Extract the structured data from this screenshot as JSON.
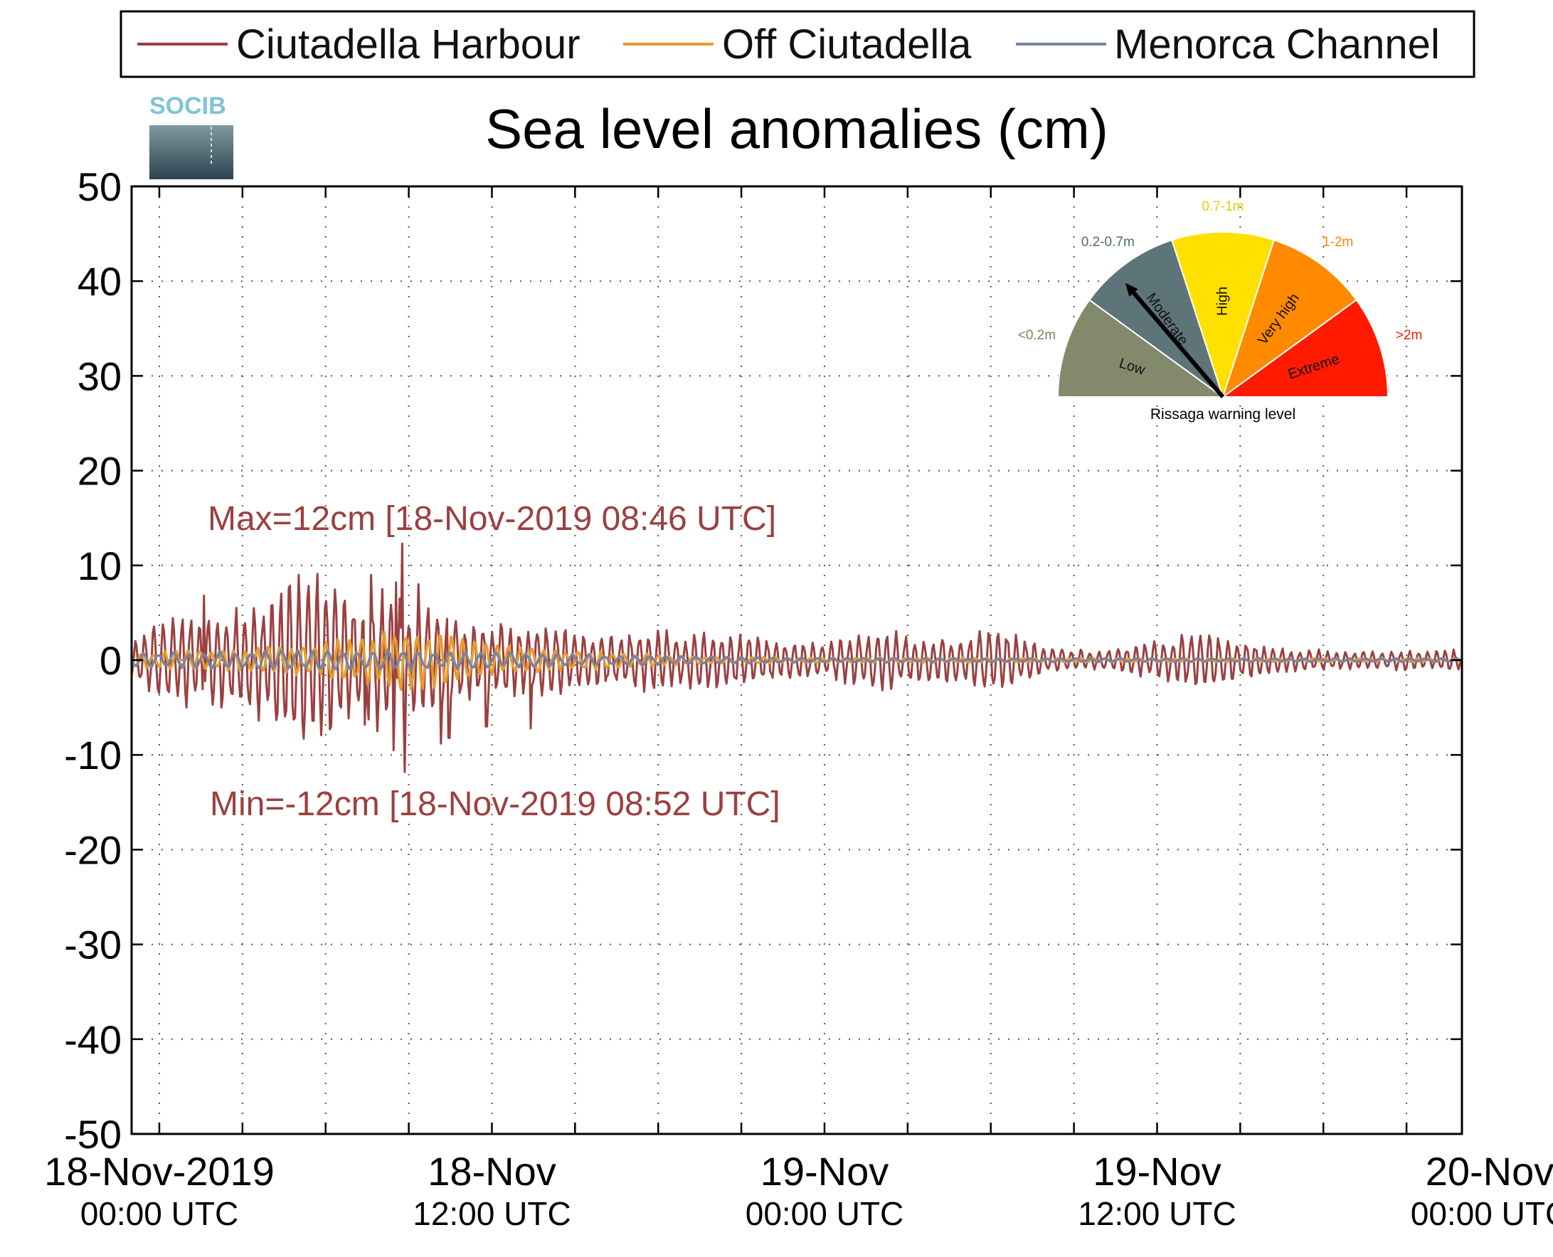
{
  "chart_data": {
    "type": "line",
    "title": "Sea level anomalies (cm)",
    "ylim": [
      -50,
      50
    ],
    "yticks": [
      50,
      40,
      30,
      20,
      10,
      0,
      -10,
      -20,
      -30,
      -40,
      -50
    ],
    "xlim_hours": [
      -1,
      47
    ],
    "xticks": [
      {
        "hours": 0,
        "date": "18-Nov-2019",
        "time": "00:00 UTC"
      },
      {
        "hours": 12,
        "date": "18-Nov",
        "time": "12:00 UTC"
      },
      {
        "hours": 24,
        "date": "19-Nov",
        "time": "00:00 UTC"
      },
      {
        "hours": 36,
        "date": "19-Nov",
        "time": "12:00 UTC"
      },
      {
        "hours": 48,
        "date": "20-Nov",
        "time": "00:00 UTC"
      }
    ],
    "grid": true,
    "legend_position": "top",
    "series": [
      {
        "name": "Ciutadella Harbour",
        "color": "#9b4040",
        "envelope": [
          [
            -1,
            2
          ],
          [
            0,
            4.5
          ],
          [
            1,
            5.5
          ],
          [
            2,
            5.5
          ],
          [
            3,
            6
          ],
          [
            4,
            7
          ],
          [
            5,
            11
          ],
          [
            6,
            9
          ],
          [
            7,
            7
          ],
          [
            8,
            8
          ],
          [
            9,
            6
          ],
          [
            10,
            6
          ],
          [
            11,
            4.5
          ],
          [
            12,
            4
          ],
          [
            14,
            4
          ],
          [
            16,
            3
          ],
          [
            18,
            3.5
          ],
          [
            19,
            3
          ],
          [
            20,
            3.2
          ],
          [
            22,
            2.5
          ],
          [
            24,
            1.8
          ],
          [
            25,
            2.8
          ],
          [
            26,
            3.5
          ],
          [
            27,
            3
          ],
          [
            28,
            2.4
          ],
          [
            29,
            2.5
          ],
          [
            30,
            3.5
          ],
          [
            31,
            2.8
          ],
          [
            32,
            1.5
          ],
          [
            33,
            1.2
          ],
          [
            34,
            1
          ],
          [
            35,
            1.5
          ],
          [
            36,
            2.2
          ],
          [
            37,
            2.8
          ],
          [
            38,
            3.2
          ],
          [
            39,
            2.3
          ],
          [
            40,
            1.6
          ],
          [
            41,
            1.2
          ],
          [
            42,
            1.2
          ],
          [
            43,
            1
          ],
          [
            45,
            1.1
          ],
          [
            47,
            1.2
          ]
        ],
        "extremes": [
          {
            "t": 8.77,
            "v": 12.3
          },
          {
            "t": 8.87,
            "v": -11.8
          },
          {
            "t": 8.55,
            "v": 8.2
          },
          {
            "t": 8.45,
            "v": -9.5
          },
          {
            "t": 7.65,
            "v": 9
          },
          {
            "t": 7.4,
            "v": -6.8
          },
          {
            "t": 9.35,
            "v": 8
          },
          {
            "t": 10.15,
            "v": -8.8
          },
          {
            "t": 10.45,
            "v": -8.2
          },
          {
            "t": 11.8,
            "v": -7
          },
          {
            "t": 13.4,
            "v": -7.2
          },
          {
            "t": 1.6,
            "v": 6.8
          },
          {
            "t": 5.55,
            "v": -6.4
          }
        ]
      },
      {
        "name": "Off Ciutadella",
        "color": "#e59c2e",
        "envelope": [
          [
            -1,
            0.8
          ],
          [
            2,
            1.2
          ],
          [
            5,
            1.8
          ],
          [
            7,
            2.4
          ],
          [
            8,
            3.2
          ],
          [
            9,
            4
          ],
          [
            10,
            3.4
          ],
          [
            11,
            2.6
          ],
          [
            12,
            1.8
          ],
          [
            14,
            1.3
          ],
          [
            16,
            1
          ],
          [
            18,
            0.6
          ],
          [
            20,
            0.4
          ],
          [
            24,
            0.3
          ],
          [
            30,
            0.25
          ],
          [
            40,
            0.2
          ],
          [
            47,
            0.2
          ]
        ],
        "extremes": []
      },
      {
        "name": "Menorca Channel",
        "color": "#7a82a3",
        "envelope": [
          [
            -1,
            0.8
          ],
          [
            2,
            1
          ],
          [
            6,
            1.1
          ],
          [
            8,
            1.2
          ],
          [
            10,
            1
          ],
          [
            13,
            0.8
          ],
          [
            16,
            0.6
          ],
          [
            20,
            0.4
          ],
          [
            24,
            0.25
          ],
          [
            30,
            0.2
          ],
          [
            40,
            0.2
          ],
          [
            47,
            0.2
          ]
        ],
        "extremes": []
      }
    ],
    "annotations": {
      "max_label": "Max=12cm [18-Nov-2019 08:46 UTC]",
      "min_label": "Min=-12cm [18-Nov-2019 08:52 UTC]",
      "color": "#9b4040"
    }
  },
  "logo": {
    "text": "SOCIB",
    "color": "#7ec4d6"
  },
  "gauge": {
    "caption": "Rissaga warning level",
    "needle_level": "Moderate",
    "segments": [
      {
        "name": "Low",
        "range": "<0.2m",
        "color": "#838a6c",
        "label_color": "#7d8460"
      },
      {
        "name": "Moderate",
        "range": "0.2-0.7m",
        "color": "#5d7478",
        "label_color": "#4e6a72"
      },
      {
        "name": "High",
        "range": "0.7-1m",
        "color": "#ffe000",
        "label_color": "#e8cf00"
      },
      {
        "name": "Very high",
        "range": "1-2m",
        "color": "#ff8a00",
        "label_color": "#ff8a00"
      },
      {
        "name": "Extreme",
        "range": ">2m",
        "color": "#ff1a00",
        "label_color": "#ff1a00"
      }
    ]
  }
}
